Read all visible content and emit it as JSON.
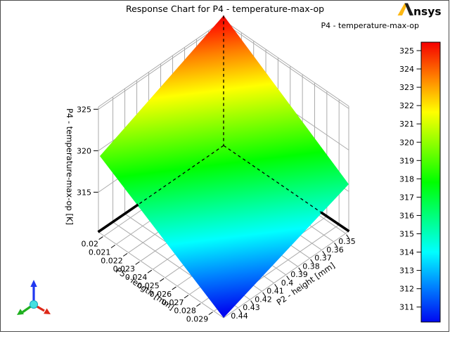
{
  "window": {
    "border_color": "#4d4d4d",
    "background": "#ffffff"
  },
  "header": {
    "title": "Response Chart for P4 - temperature-max-op",
    "logo": {
      "text": "nsys",
      "mark": "ansys-A-mark",
      "gold": "#FDB813",
      "dark": "#1f1f1f"
    }
  },
  "legend": {
    "title": "P4 - temperature-max-op",
    "tick_labels": [
      "325",
      "324",
      "323",
      "322",
      "321",
      "320",
      "319",
      "318",
      "317",
      "316",
      "315",
      "314",
      "313",
      "312",
      "311"
    ]
  },
  "axes": {
    "x": {
      "label": "P5 - length [mm]",
      "tick_labels": [
        "0.02",
        "0.021",
        "0.022",
        "0.023",
        "0.024",
        "0.025",
        "0.026",
        "0.027",
        "0.028",
        "0.029"
      ]
    },
    "y": {
      "label": "P2 - height [mm]",
      "tick_labels": [
        "0.35",
        "0.36",
        "0.37",
        "0.38",
        "0.39",
        "0.4",
        "0.41",
        "0.42",
        "0.43",
        "0.44"
      ]
    },
    "z": {
      "label": "P4 - temperature-max-op [K]",
      "tick_labels": [
        "315",
        "320",
        "325"
      ]
    }
  },
  "triad": {
    "x_color": "#dd2818",
    "y_color": "#1fb01f",
    "z_color": "#2038f0",
    "center_color": "#45e0e0"
  },
  "chart_data": {
    "type": "surface",
    "title": "Response Chart for P4 - temperature-max-op",
    "xlabel": "P5 - length [mm]",
    "ylabel": "P2 - height [mm]",
    "zlabel": "P4 - temperature-max-op [K]",
    "x_ticks": [
      0.02,
      0.021,
      0.022,
      0.023,
      0.024,
      0.025,
      0.026,
      0.027,
      0.028,
      0.029
    ],
    "y_ticks": [
      0.35,
      0.36,
      0.37,
      0.38,
      0.39,
      0.4,
      0.41,
      0.42,
      0.43,
      0.44
    ],
    "z_ticks": [
      315,
      320,
      325
    ],
    "zlim": [
      310.2,
      325.5
    ],
    "colorbar": {
      "title": "P4 - temperature-max-op",
      "min": 310.2,
      "max": 325.5,
      "ticks": [
        325,
        324,
        323,
        322,
        321,
        320,
        319,
        318,
        317,
        316,
        315,
        314,
        313,
        312,
        311
      ],
      "colormap": "rainbow (red=max, blue=min)"
    },
    "surface_corner_values_K": {
      "x_0.02_y_0.35": 325.5,
      "x_0.02_y_0.44": 319.0,
      "x_0.029_y_0.35": 316.0,
      "x_0.029_y_0.44": 310.2
    },
    "grid": true,
    "legend_position": "right",
    "marker_lines": "dashed hidden axes through back corner of bounding box"
  }
}
